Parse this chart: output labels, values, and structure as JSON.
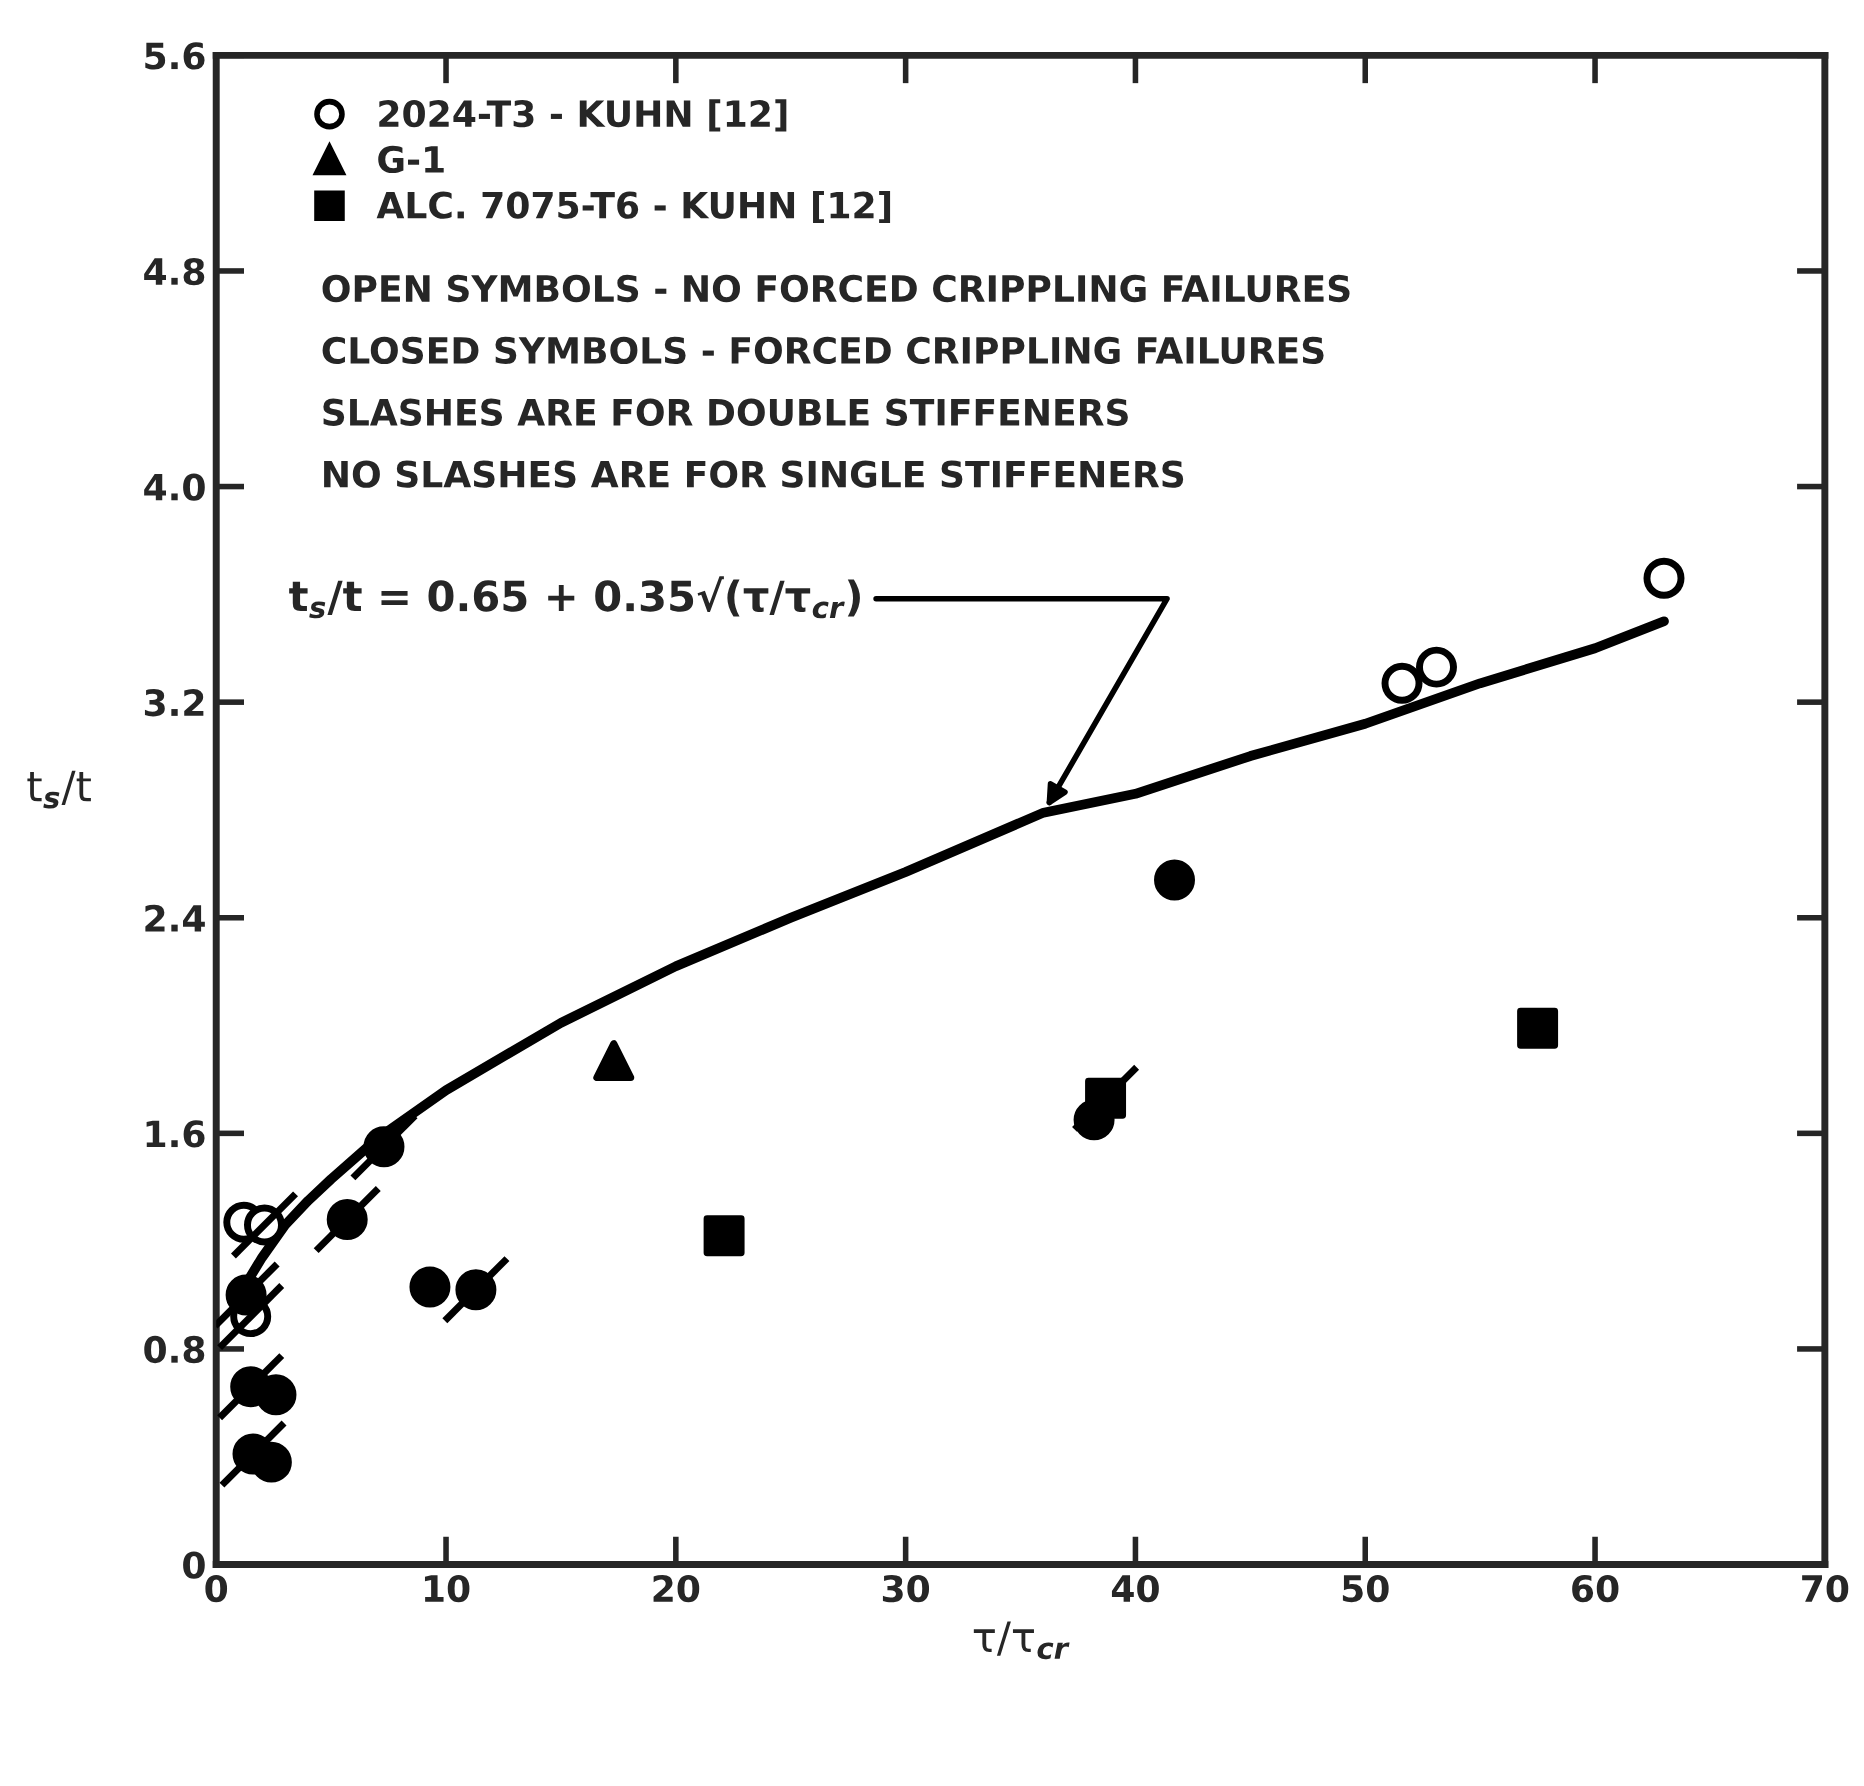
{
  "chart_data": {
    "type": "scatter",
    "xlabel": "τ/τ$_{cr}$",
    "ylabel": "t$_{s}$/t",
    "xlim": [
      0,
      70
    ],
    "xticks": [
      0,
      10,
      20,
      30,
      40,
      50,
      60,
      70
    ],
    "ylim": [
      0,
      5.6
    ],
    "yticks": [
      0,
      0.8,
      1.6,
      2.4,
      3.2,
      {
        "value": 4,
        "label": "4.0"
      },
      4.8,
      5.6
    ],
    "grid": false,
    "legend": "top left",
    "series": [
      {
        "name": "2024-T3 - KUHN [12]",
        "color": "#ffffff",
        "marker": "circle",
        "x": [
          1.2,
          51.6,
          53.1,
          63.0
        ],
        "values": [
          1.27,
          3.27,
          3.33,
          3.66
        ]
      },
      {
        "name": "G-1",
        "color": "#000000",
        "marker": "triangle",
        "x": [
          17.3
        ],
        "values": [
          1.87
        ]
      },
      {
        "name": "ALC. 7075-T6 - KUHN [12]",
        "color": "#000000",
        "marker": "square",
        "x": [
          22.1,
          57.5
        ],
        "values": [
          1.22,
          1.99
        ]
      },
      {
        "color": "#ffffff",
        "marker": "circle",
        "line_style": "solid",
        "x": [
          2.1,
          1.5
        ],
        "values": [
          1.26,
          0.92
        ]
      },
      {
        "color": "#000000",
        "marker": "circle",
        "line_style": "solid",
        "x": [
          1.3,
          1.5,
          1.6,
          5.7,
          7.3,
          11.3
        ],
        "values": [
          1.0,
          0.66,
          0.41,
          1.28,
          1.55,
          1.02
        ]
      },
      {
        "color": "#000000",
        "marker": "circle",
        "x": [
          2.6,
          2.4,
          9.3,
          38.2,
          41.7
        ],
        "values": [
          0.63,
          0.38,
          1.03,
          1.65,
          2.54
        ]
      },
      {
        "color": "#000000",
        "marker": "square",
        "line_style": "solid",
        "x": [
          38.7
        ],
        "values": [
          1.73
        ]
      },
      {
        "type": "line",
        "color": "#000000",
        "x": [
          1,
          2,
          3,
          4,
          5,
          7,
          10,
          15,
          20,
          25,
          30,
          36,
          40,
          45,
          50,
          55,
          60,
          63
        ],
        "values": [
          1.0,
          1.14,
          1.26,
          1.35,
          1.43,
          1.58,
          1.76,
          2.01,
          2.22,
          2.4,
          2.57,
          2.79,
          2.86,
          3.0,
          3.12,
          3.27,
          3.4,
          3.5
        ]
      }
    ],
    "annotations": [
      "OPEN SYMBOLS - NO FORCED CRIPPLING FAILURES",
      "CLOSED SYMBOLS - FORCED CRIPPLING FAILURES",
      "SLASHES ARE FOR DOUBLE STIFFENERS",
      "NO SLASHES ARE FOR SINGLE STIFFENERS",
      {
        "text": "t$_{s}$/t = 0.65 + 0.35√(τ/τ$_{cr}$)",
        "x": 36,
        "y": 2.79
      }
    ]
  }
}
